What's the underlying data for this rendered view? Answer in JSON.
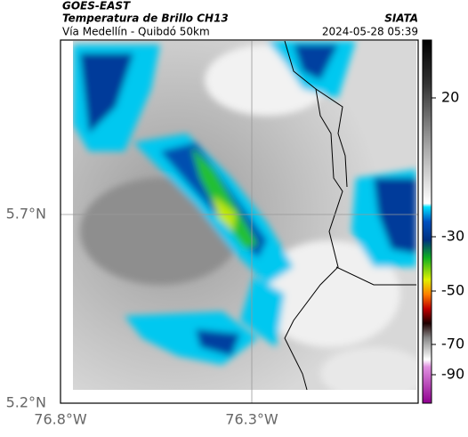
{
  "header": {
    "title": "GOES-EAST",
    "subtitle": "Temperatura de Brillo CH13",
    "region": "Vía Medellín - Quibdó 50km",
    "source": "SIATA",
    "timestamp": "2024-05-28 05:39"
  },
  "map": {
    "lat_labels": [
      "5.7°N",
      "5.2°N"
    ],
    "lon_labels": [
      "76.8°W",
      "76.3°W"
    ]
  },
  "colorbar": {
    "ticks": [
      20,
      -30,
      -50,
      -70,
      -90
    ]
  }
}
